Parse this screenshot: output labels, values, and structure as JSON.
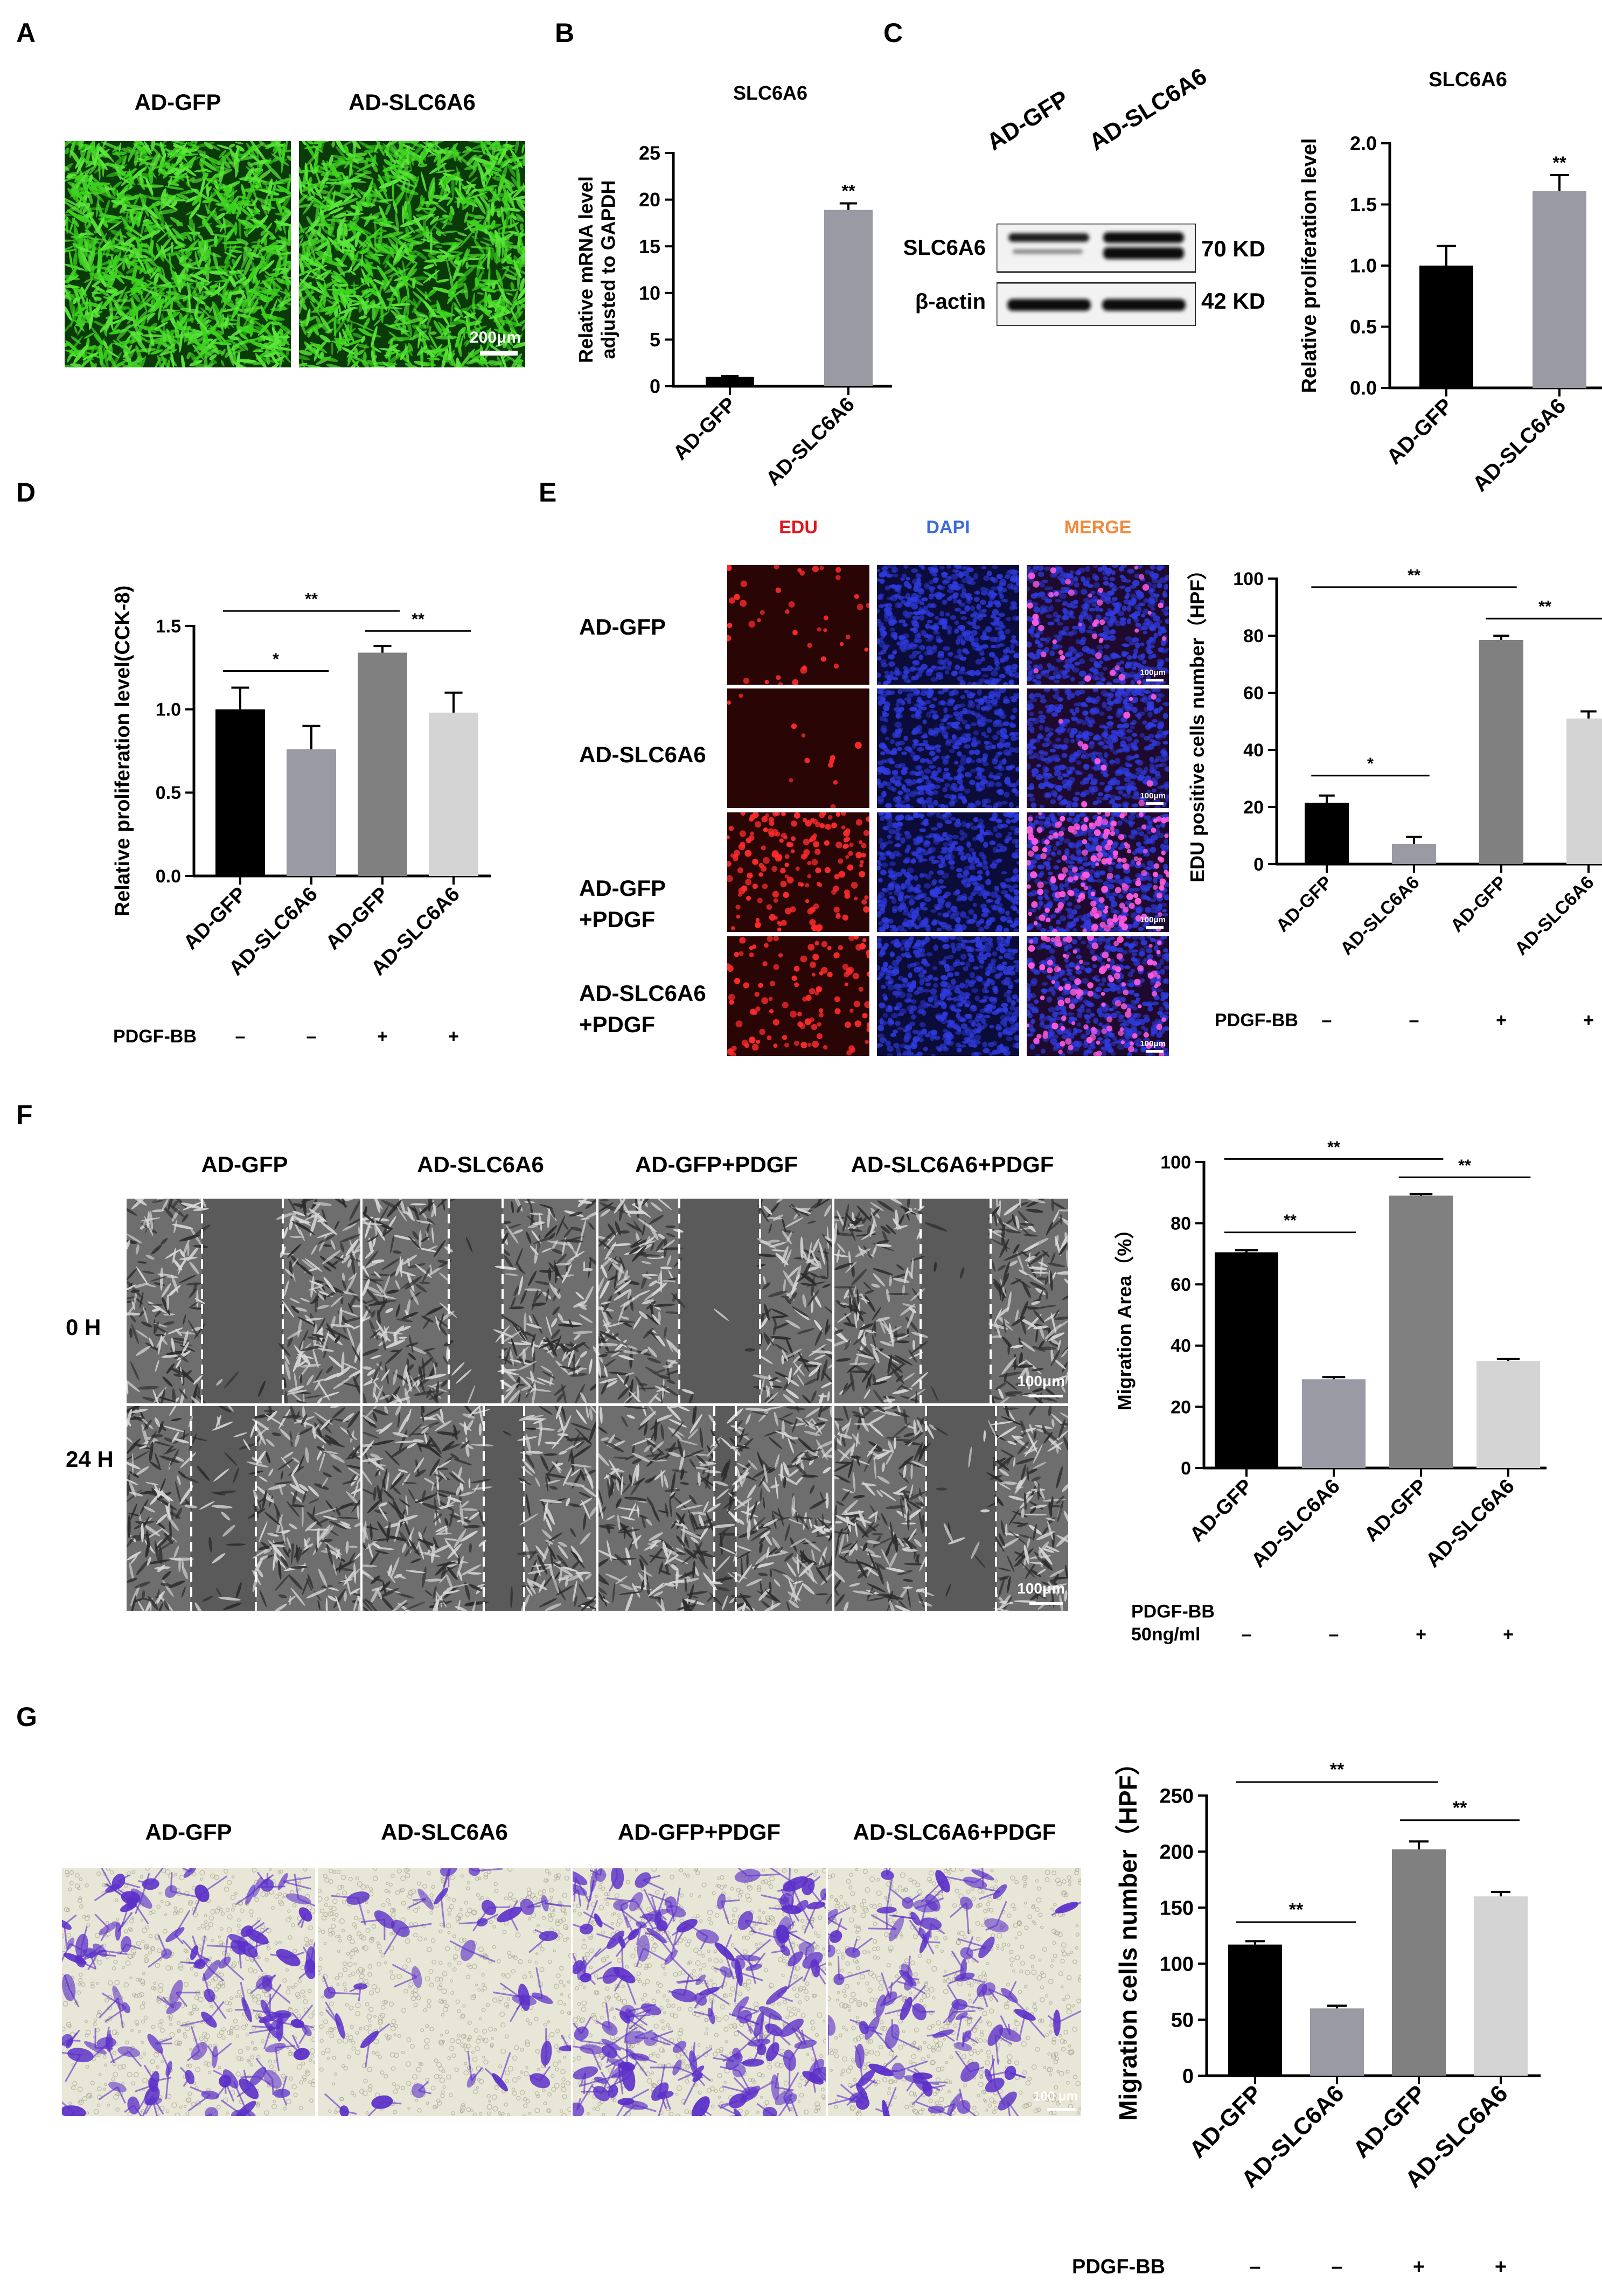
{
  "colors": {
    "gfp_green": "#3cd21e",
    "edu_red": "#e0161c",
    "dapi_blue": "#2f3be0",
    "merge_pink": "#d84fd0",
    "crystal_violet": "#5b2fc9",
    "bar_black": "#000000",
    "bar_gray": "#999aa3",
    "bar_midgray": "#808080",
    "bar_lightgray": "#d4d4d4",
    "edu_label": "#e0161c",
    "dapi_label": "#3b6bdc",
    "merge_label": "#f08a3c"
  },
  "panelA": {
    "letter": "A",
    "headers": [
      "AD-GFP",
      "AD-SLC6A6"
    ],
    "scale_bar": "200μm"
  },
  "panelB": {
    "letter": "B",
    "chart_data": {
      "type": "bar",
      "title": "SLC6A6",
      "ylabel": "Relative  mRNA level\nadjusted to GAPDH",
      "categories": [
        "AD-GFP",
        "AD-SLC6A6"
      ],
      "values": [
        1.0,
        18.9
      ],
      "errors": [
        0.1,
        0.7
      ],
      "ylim": [
        0,
        25
      ],
      "yticks": [
        "0",
        "5",
        "10",
        "15",
        "20",
        "25"
      ],
      "significance": [
        {
          "bar": 1,
          "label": "**"
        }
      ]
    }
  },
  "panelC": {
    "letter": "C",
    "blot": {
      "lanes": [
        "AD-GFP",
        "AD-SLC6A6"
      ],
      "rows": [
        {
          "protein": "SLC6A6",
          "size": "70 KD"
        },
        {
          "protein": "β-actin",
          "size": "42 KD"
        }
      ]
    },
    "chart_data": {
      "type": "bar",
      "title": "SLC6A6",
      "ylabel": "Relative  proliferation level",
      "categories": [
        "AD-GFP",
        "AD-SLC6A6"
      ],
      "values": [
        1.0,
        1.61
      ],
      "errors": [
        0.16,
        0.13
      ],
      "ylim": [
        0,
        2.0
      ],
      "yticks": [
        "0.0",
        "0.5",
        "1.0",
        "1.5",
        "2.0"
      ],
      "significance": [
        {
          "bar": 1,
          "label": "**"
        }
      ]
    }
  },
  "panelD": {
    "letter": "D",
    "chart_data": {
      "type": "bar",
      "ylabel": "Relative  proliferation level(CCK-8)",
      "categories": [
        "AD-GFP",
        "AD-SLC6A6",
        "AD-GFP",
        "AD-SLC6A6"
      ],
      "values": [
        1.0,
        0.76,
        1.34,
        0.98
      ],
      "errors": [
        0.13,
        0.14,
        0.04,
        0.12
      ],
      "ylim": [
        0,
        1.5
      ],
      "yticks": [
        "0.0",
        "0.5",
        "1.0",
        "1.5"
      ],
      "brackets": [
        {
          "from": 0,
          "to": 1,
          "label": "*",
          "y": 1.23
        },
        {
          "from": 0,
          "to": 2,
          "label": "**",
          "y": 1.59
        },
        {
          "from": 2,
          "to": 3,
          "label": "**",
          "y": 1.47
        }
      ],
      "treatment_label": "PDGF-BB",
      "treatment": [
        "–",
        "–",
        "+",
        "+"
      ]
    }
  },
  "panelE": {
    "letter": "E",
    "headers": [
      "EDU",
      "DAPI",
      "MERGE"
    ],
    "rows": [
      "AD-GFP",
      "AD-SLC6A6",
      "AD-GFP\n+PDGF",
      "AD-SLC6A6\n+PDGF"
    ],
    "scale_bar": "100μm",
    "chart_data": {
      "type": "bar",
      "ylabel": "EDU positive cells number（HPF）",
      "categories": [
        "AD-GFP",
        "AD-SLC6A6",
        "AD-GFP",
        "AD-SLC6A6"
      ],
      "values": [
        21.5,
        7.0,
        78.5,
        51.0
      ],
      "errors": [
        2.5,
        2.5,
        1.5,
        2.5
      ],
      "ylim": [
        0,
        100
      ],
      "yticks": [
        "0",
        "20",
        "40",
        "60",
        "80",
        "100"
      ],
      "brackets": [
        {
          "from": 0,
          "to": 1,
          "label": "*",
          "y": 31
        },
        {
          "from": 0,
          "to": 2,
          "label": "**",
          "y": 97
        },
        {
          "from": 2,
          "to": 3,
          "label": "**",
          "y": 86
        }
      ],
      "treatment_label": "PDGF-BB",
      "treatment": [
        "–",
        "–",
        "+",
        "+"
      ]
    }
  },
  "panelF": {
    "letter": "F",
    "headers": [
      "AD-GFP",
      "AD-SLC6A6",
      "AD-GFP+PDGF",
      "AD-SLC6A6+PDGF"
    ],
    "rows": [
      "0 H",
      "24 H"
    ],
    "scale_bar": "100μm",
    "chart_data": {
      "type": "bar",
      "ylabel": "Migration Area（%）",
      "categories": [
        "AD-GFP",
        "AD-SLC6A6",
        "AD-GFP",
        "AD-SLC6A6"
      ],
      "values": [
        70.5,
        29.0,
        89.0,
        35.0
      ],
      "errors": [
        0.7,
        0.7,
        0.5,
        0.6
      ],
      "ylim": [
        0,
        100
      ],
      "yticks": [
        "0",
        "20",
        "40",
        "60",
        "80",
        "100"
      ],
      "brackets": [
        {
          "from": 0,
          "to": 1,
          "label": "**",
          "y": 77
        },
        {
          "from": 0,
          "to": 2,
          "label": "**",
          "y": 101
        },
        {
          "from": 2,
          "to": 3,
          "label": "**",
          "y": 95
        }
      ],
      "treatment_label": "PDGF-BB\n50ng/ml",
      "treatment": [
        "–",
        "–",
        "+",
        "+"
      ]
    }
  },
  "panelG": {
    "letter": "G",
    "headers": [
      "AD-GFP",
      "AD-SLC6A6",
      "AD-GFP+PDGF",
      "AD-SLC6A6+PDGF"
    ],
    "scale_bar": "100 μm",
    "chart_data": {
      "type": "bar",
      "ylabel": "Migration cells number（HPF）",
      "categories": [
        "AD-GFP",
        "AD-SLC6A6",
        "AD-GFP",
        "AD-SLC6A6"
      ],
      "values": [
        117,
        60,
        202,
        160
      ],
      "errors": [
        3,
        2.5,
        7,
        4
      ],
      "ylim": [
        0,
        250
      ],
      "yticks": [
        "0",
        "50",
        "100",
        "150",
        "200",
        "250"
      ],
      "brackets": [
        {
          "from": 0,
          "to": 1,
          "label": "**",
          "y": 137
        },
        {
          "from": 0,
          "to": 2,
          "label": "**",
          "y": 262
        },
        {
          "from": 2,
          "to": 3,
          "label": "**",
          "y": 228
        }
      ],
      "treatment_label": "PDGF-BB",
      "treatment": [
        "–",
        "–",
        "+",
        "+"
      ]
    }
  }
}
